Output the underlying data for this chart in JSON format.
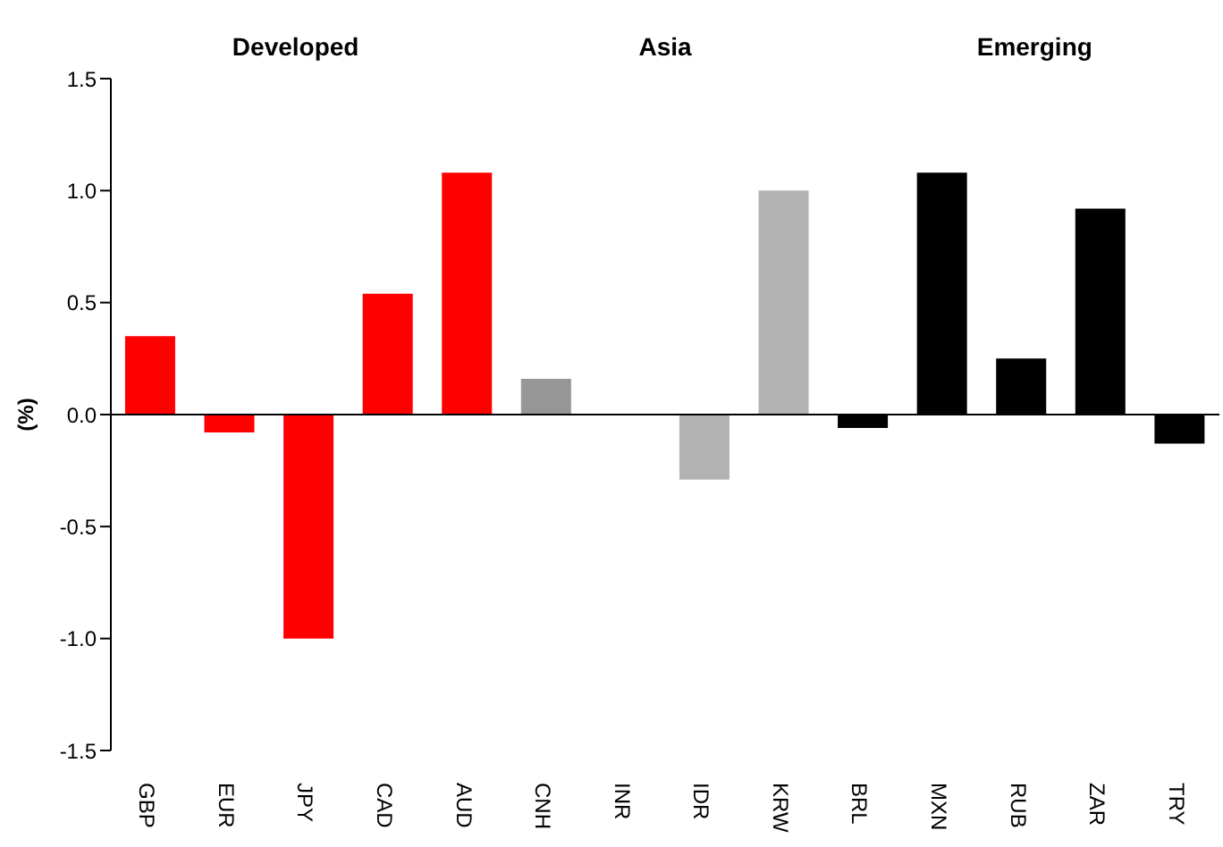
{
  "chart_data": {
    "type": "bar",
    "ylabel": "(%)",
    "categories": [
      "GBP",
      "EUR",
      "JPY",
      "CAD",
      "AUD",
      "CNH",
      "INR",
      "IDR",
      "KRW",
      "BRL",
      "MXN",
      "RUB",
      "ZAR",
      "TRY"
    ],
    "values": [
      0.35,
      -0.08,
      -1.0,
      0.54,
      1.08,
      0.16,
      0,
      -0.29,
      1.0,
      -0.06,
      1.08,
      0.25,
      0.92,
      -0.13
    ],
    "colors": [
      "#ff0000",
      "#ff0000",
      "#ff0000",
      "#ff0000",
      "#ff0000",
      "#969696",
      "#b2b2b2",
      "#b2b2b2",
      "#b2b2b2",
      "#000000",
      "#000000",
      "#000000",
      "#000000",
      "#000000"
    ],
    "ylim": [
      -1.5,
      1.5
    ],
    "yticks": [
      {
        "value": -1.5,
        "label": "-1.5"
      },
      {
        "value": -1.0,
        "label": "-1.0"
      },
      {
        "value": -0.5,
        "label": "-0.5"
      },
      {
        "value": 0,
        "label": "0.0"
      },
      {
        "value": 0.5,
        "label": "0.5"
      },
      {
        "value": 1.0,
        "label": "1.0"
      },
      {
        "value": 1.5,
        "label": "1.5"
      }
    ],
    "annotations": [
      "Developed",
      "Asia",
      "Emerging"
    ],
    "legend": false
  }
}
